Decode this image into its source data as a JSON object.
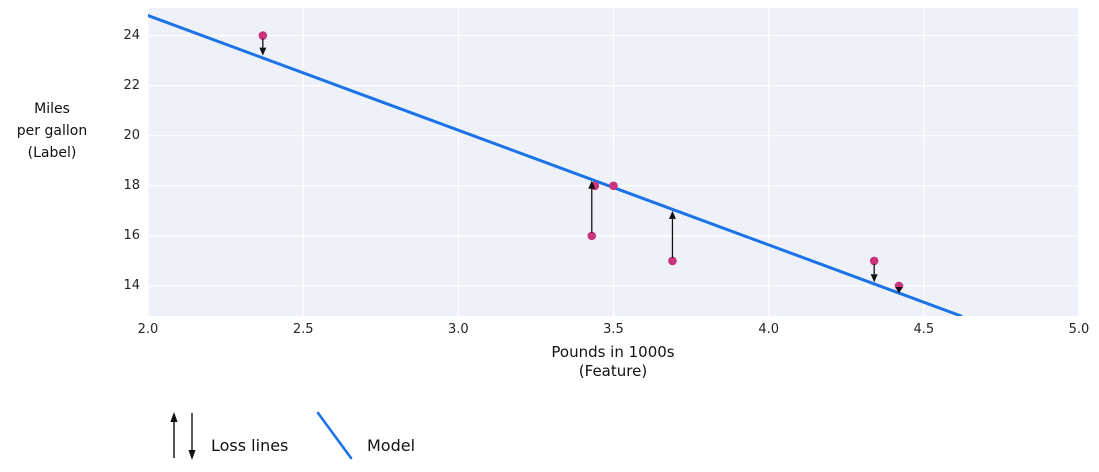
{
  "chart_data": {
    "type": "scatter",
    "xlabel": "Pounds in 1000s (Feature)",
    "ylabel": "Miles per gallon (Label)",
    "xlabel_lines": [
      "Pounds in 1000s",
      "(Feature)"
    ],
    "ylabel_lines": [
      "Miles",
      "per gallon",
      "(Label)"
    ],
    "xlim": [
      2.0,
      5.0
    ],
    "ylim": [
      12.8,
      25.1
    ],
    "xticks": [
      2.0,
      2.5,
      3.0,
      3.5,
      4.0,
      4.5,
      5.0
    ],
    "xtick_labels": [
      "2.0",
      "2.5",
      "3.0",
      "3.5",
      "4.0",
      "4.5",
      "5.0"
    ],
    "yticks": [
      14,
      16,
      18,
      20,
      22,
      24
    ],
    "ytick_labels": [
      "14",
      "16",
      "18",
      "20",
      "22",
      "24"
    ],
    "grid": true,
    "points": [
      {
        "x": 2.37,
        "y": 24
      },
      {
        "x": 3.43,
        "y": 16
      },
      {
        "x": 3.44,
        "y": 18
      },
      {
        "x": 3.5,
        "y": 18
      },
      {
        "x": 3.69,
        "y": 15
      },
      {
        "x": 4.34,
        "y": 15
      },
      {
        "x": 4.42,
        "y": 14
      }
    ],
    "model_line": {
      "x1": 2.0,
      "y1": 24.8,
      "x2": 4.62,
      "y2": 12.8
    },
    "loss_arrows": [
      {
        "x": 2.37,
        "from": 24,
        "to": 23.2,
        "direction": "down"
      },
      {
        "x": 3.43,
        "from": 16,
        "to": 18.2,
        "direction": "up"
      },
      {
        "x": 3.69,
        "from": 15,
        "to": 17.0,
        "direction": "up"
      },
      {
        "x": 4.34,
        "from": 15,
        "to": 14.15,
        "direction": "down"
      },
      {
        "x": 4.42,
        "from": 14,
        "to": 13.7,
        "direction": "down"
      }
    ],
    "legend": [
      {
        "symbol": "loss-arrows",
        "label": "Loss lines"
      },
      {
        "symbol": "model-line",
        "label": "Model"
      }
    ],
    "legend_position": "bottom-left",
    "colors": {
      "model_line": "#1a73e8",
      "point": "#c9347c",
      "arrow": "#111111",
      "plot_bg": "#eef1f7",
      "grid": "#ffffff",
      "tick_text": "#262626",
      "label_text": "#111111"
    }
  }
}
